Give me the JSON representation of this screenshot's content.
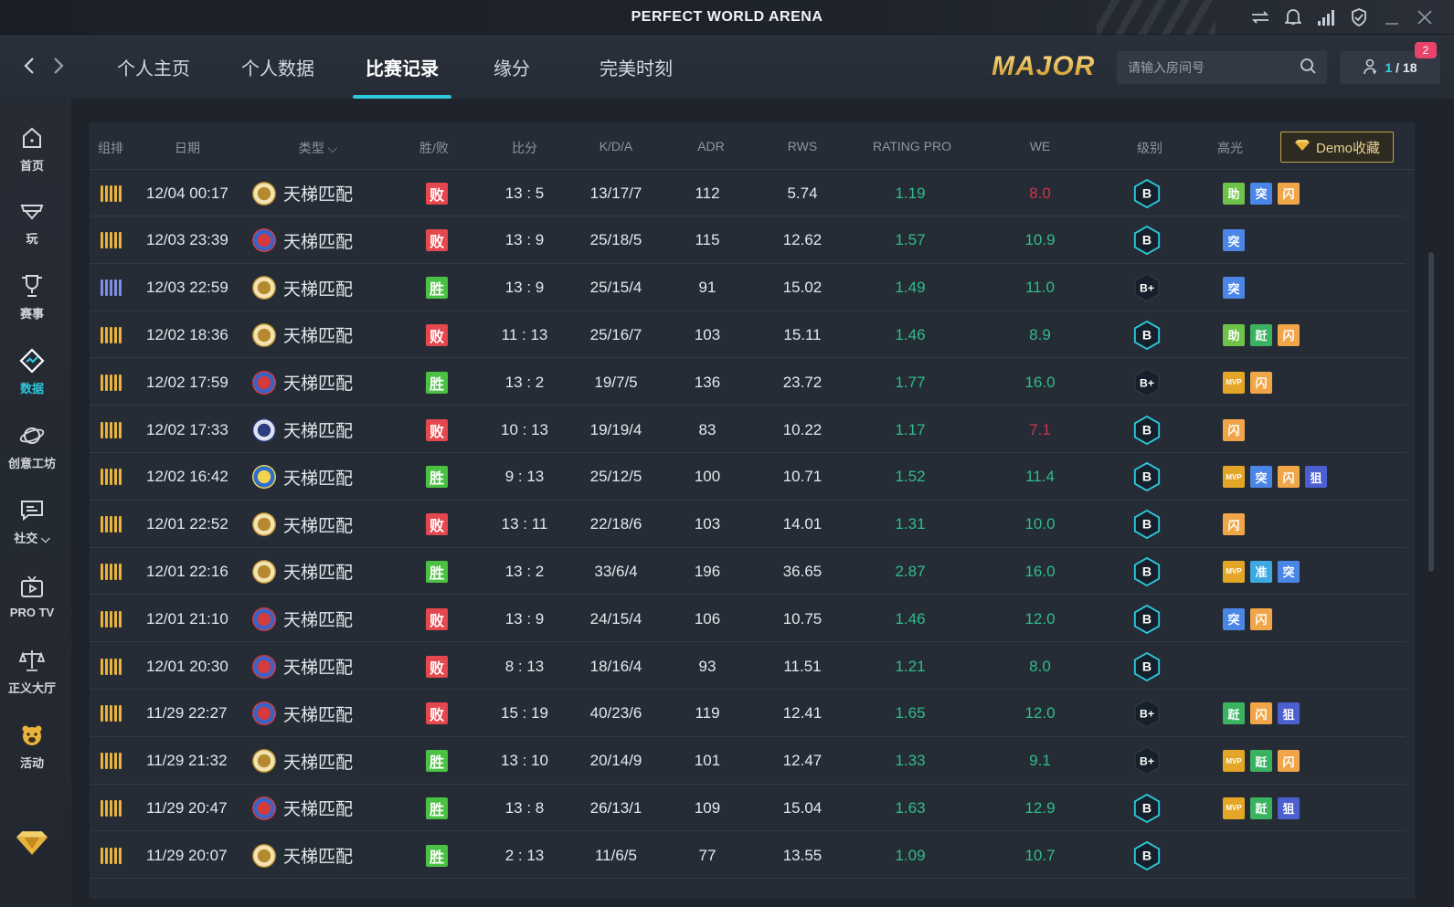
{
  "app": {
    "title": "PERFECT WORLD ARENA"
  },
  "nav": {
    "tabs": [
      {
        "label": "个人主页"
      },
      {
        "label": "个人数据"
      },
      {
        "label": "比赛记录"
      },
      {
        "label": "缘分"
      },
      {
        "label": "完美时刻"
      }
    ],
    "active_tab": "比赛记录",
    "logo_text": "MAJOR",
    "search_placeholder": "请输入房间号",
    "room_current": "1",
    "room_total": "/ 18",
    "badge_count": "2"
  },
  "sidebar": {
    "items": [
      {
        "label": "首页",
        "icon": "home-icon"
      },
      {
        "label": "玩",
        "icon": "play-icon"
      },
      {
        "label": "赛事",
        "icon": "trophy-icon"
      },
      {
        "label": "数据",
        "icon": "data-icon"
      },
      {
        "label": "创意工坊",
        "icon": "planet-icon"
      },
      {
        "label": "社交 ⌵",
        "icon": "chat-icon"
      },
      {
        "label": "PRO TV",
        "icon": "tv-icon"
      },
      {
        "label": "正义大厅",
        "icon": "scales-icon"
      },
      {
        "label": "活动",
        "icon": "bear-icon"
      }
    ]
  },
  "table": {
    "headers": {
      "team": "组排",
      "date": "日期",
      "type": "类型",
      "result": "胜/败",
      "score": "比分",
      "kda": "K/D/A",
      "adr": "ADR",
      "rws": "RWS",
      "rating": "RATING PRO",
      "we": "WE",
      "level": "级别",
      "highlight": "高光"
    },
    "demo_button": "Demo收藏",
    "rows": [
      {
        "team": "gold",
        "date": "12/04 00:17",
        "mode_icon": "gold",
        "mode": "天梯匹配",
        "result": "败",
        "win": false,
        "score": "13 : 5",
        "kda": "13/17/7",
        "adr": "112",
        "rws": "5.74",
        "rating": "1.19",
        "we": "8.0",
        "we_red": true,
        "rank": "B",
        "tags": [
          "助",
          "突",
          "闪"
        ]
      },
      {
        "team": "gold",
        "date": "12/03 23:39",
        "mode_icon": "red",
        "mode": "天梯匹配",
        "result": "败",
        "win": false,
        "score": "13 : 9",
        "kda": "25/18/5",
        "adr": "115",
        "rws": "12.62",
        "rating": "1.57",
        "we": "10.9",
        "we_red": false,
        "rank": "B",
        "tags": [
          "突"
        ]
      },
      {
        "team": "blue",
        "date": "12/03 22:59",
        "mode_icon": "gold",
        "mode": "天梯匹配",
        "result": "胜",
        "win": true,
        "score": "13 : 9",
        "kda": "25/15/4",
        "adr": "91",
        "rws": "15.02",
        "rating": "1.49",
        "we": "11.0",
        "we_red": false,
        "rank": "B+",
        "tags": [
          "突"
        ]
      },
      {
        "team": "gold",
        "date": "12/02 18:36",
        "mode_icon": "gold",
        "mode": "天梯匹配",
        "result": "败",
        "win": false,
        "score": "11 : 13",
        "kda": "25/16/7",
        "adr": "103",
        "rws": "15.11",
        "rating": "1.46",
        "we": "8.9",
        "we_red": false,
        "rank": "B",
        "tags": [
          "助",
          "跹",
          "闪"
        ]
      },
      {
        "team": "gold",
        "date": "12/02 17:59",
        "mode_icon": "red",
        "mode": "天梯匹配",
        "result": "胜",
        "win": true,
        "score": "13 : 2",
        "kda": "19/7/5",
        "adr": "136",
        "rws": "23.72",
        "rating": "1.77",
        "we": "16.0",
        "we_red": false,
        "rank": "B+",
        "tags": [
          "MVP",
          "闪"
        ]
      },
      {
        "team": "gold",
        "date": "12/02 17:33",
        "mode_icon": "navy",
        "mode": "天梯匹配",
        "result": "败",
        "win": false,
        "score": "10 : 13",
        "kda": "19/19/4",
        "adr": "83",
        "rws": "10.22",
        "rating": "1.17",
        "we": "7.1",
        "we_red": true,
        "rank": "B",
        "tags": [
          "闪"
        ]
      },
      {
        "team": "gold",
        "date": "12/02 16:42",
        "mode_icon": "blue",
        "mode": "天梯匹配",
        "result": "胜",
        "win": true,
        "score": "9 : 13",
        "kda": "25/12/5",
        "adr": "100",
        "rws": "10.71",
        "rating": "1.52",
        "we": "11.4",
        "we_red": false,
        "rank": "B",
        "tags": [
          "MVP",
          "突",
          "闪",
          "狙"
        ]
      },
      {
        "team": "gold",
        "date": "12/01 22:52",
        "mode_icon": "gold",
        "mode": "天梯匹配",
        "result": "败",
        "win": false,
        "score": "13 : 11",
        "kda": "22/18/6",
        "adr": "103",
        "rws": "14.01",
        "rating": "1.31",
        "we": "10.0",
        "we_red": false,
        "rank": "B",
        "tags": [
          "闪"
        ]
      },
      {
        "team": "gold",
        "date": "12/01 22:16",
        "mode_icon": "gold",
        "mode": "天梯匹配",
        "result": "胜",
        "win": true,
        "score": "13 : 2",
        "kda": "33/6/4",
        "adr": "196",
        "rws": "36.65",
        "rating": "2.87",
        "we": "16.0",
        "we_red": false,
        "rank": "B",
        "tags": [
          "MVP",
          "准",
          "突"
        ]
      },
      {
        "team": "gold",
        "date": "12/01 21:10",
        "mode_icon": "red",
        "mode": "天梯匹配",
        "result": "败",
        "win": false,
        "score": "13 : 9",
        "kda": "24/15/4",
        "adr": "106",
        "rws": "10.75",
        "rating": "1.46",
        "we": "12.0",
        "we_red": false,
        "rank": "B",
        "tags": [
          "突",
          "闪"
        ]
      },
      {
        "team": "gold",
        "date": "12/01 20:30",
        "mode_icon": "red",
        "mode": "天梯匹配",
        "result": "败",
        "win": false,
        "score": "8 : 13",
        "kda": "18/16/4",
        "adr": "93",
        "rws": "11.51",
        "rating": "1.21",
        "we": "8.0",
        "we_red": false,
        "rank": "B",
        "tags": []
      },
      {
        "team": "gold",
        "date": "11/29 22:27",
        "mode_icon": "red",
        "mode": "天梯匹配",
        "result": "败",
        "win": false,
        "score": "15 : 19",
        "kda": "40/23/6",
        "adr": "119",
        "rws": "12.41",
        "rating": "1.65",
        "we": "12.0",
        "we_red": false,
        "rank": "B+",
        "tags": [
          "跹",
          "闪",
          "狙"
        ]
      },
      {
        "team": "gold",
        "date": "11/29 21:32",
        "mode_icon": "gold",
        "mode": "天梯匹配",
        "result": "胜",
        "win": true,
        "score": "13 : 10",
        "kda": "20/14/9",
        "adr": "101",
        "rws": "12.47",
        "rating": "1.33",
        "we": "9.1",
        "we_red": false,
        "rank": "B+",
        "tags": [
          "MVP",
          "跹",
          "闪"
        ]
      },
      {
        "team": "gold",
        "date": "11/29 20:47",
        "mode_icon": "red",
        "mode": "天梯匹配",
        "result": "胜",
        "win": true,
        "score": "13 : 8",
        "kda": "26/13/1",
        "adr": "109",
        "rws": "15.04",
        "rating": "1.63",
        "we": "12.9",
        "we_red": false,
        "rank": "B",
        "tags": [
          "MVP",
          "跹",
          "狙"
        ]
      },
      {
        "team": "gold",
        "date": "11/29 20:07",
        "mode_icon": "gold",
        "mode": "天梯匹配",
        "result": "胜",
        "win": true,
        "score": "2 : 13",
        "kda": "11/6/5",
        "adr": "77",
        "rws": "13.55",
        "rating": "1.09",
        "we": "10.7",
        "we_red": false,
        "rank": "B",
        "tags": []
      }
    ]
  },
  "colors": {
    "accent": "#2ec7dc",
    "win": "#4ac142",
    "loss": "#e4474d",
    "rating": "#2fbc8c",
    "bad_we": "#d0344a",
    "gold": "#e9b23a"
  }
}
